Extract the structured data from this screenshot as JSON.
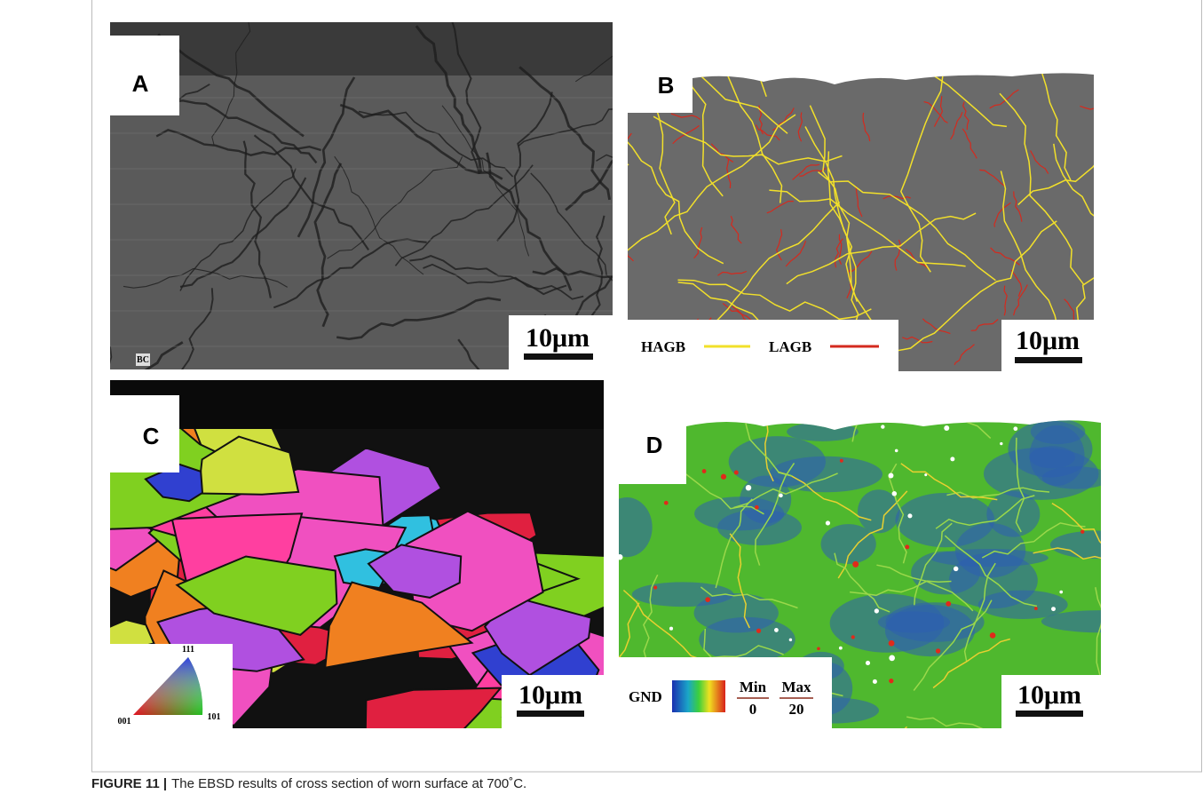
{
  "panels": [
    {
      "label": "A",
      "scale_bar": "10μm",
      "corner_tag": "BC"
    },
    {
      "label": "B",
      "scale_bar": "10μm",
      "legend": [
        {
          "name": "HAGB",
          "color": "#f2e02a"
        },
        {
          "name": "LAGB",
          "color": "#d42a1e"
        }
      ]
    },
    {
      "label": "C",
      "scale_bar": "10μm",
      "ipf_corners": [
        "111",
        "001",
        "101"
      ]
    },
    {
      "label": "D",
      "scale_bar": "10μm",
      "legend": {
        "title": "GND",
        "min_label": "Min",
        "min": 0,
        "max_label": "Max",
        "max": 20
      }
    }
  ],
  "caption": {
    "label": "FIGURE 11 |",
    "text": "The EBSD results of cross section of worn surface at 700˚C."
  }
}
